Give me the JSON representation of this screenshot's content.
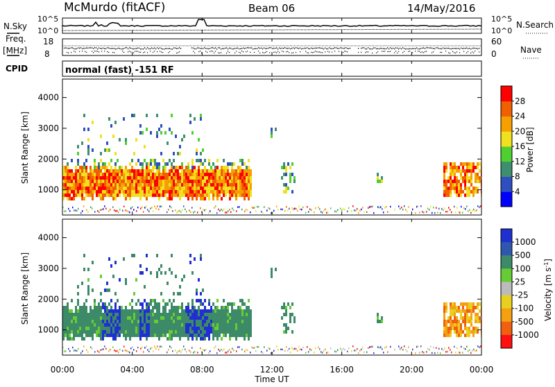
{
  "header": {
    "station": "McMurdo (fitACF)",
    "beam": "Beam 06",
    "date": "14/May/2016"
  },
  "summary": {
    "nsky_label": "N.Sky",
    "nsky_ticks": [
      "10^5",
      "10^0"
    ],
    "nsearch_label": "N.Search",
    "nsearch_ticks": [
      "10^5",
      "10^0"
    ],
    "freq_label_1": "Freq.",
    "freq_label_2": "[MHz]",
    "freq_ticks": [
      "18",
      "8"
    ],
    "nave_label": "Nave",
    "nave_ticks": [
      "60",
      "0"
    ],
    "cpid_label": "CPID",
    "cpid_text": "normal (fast) -151 RF"
  },
  "colors": {
    "power_scale": [
      "#0000ff",
      "#2e4fbf",
      "#3d8f6f",
      "#4fcf30",
      "#f0e020",
      "#f5a000",
      "#f06000",
      "#ff0000"
    ],
    "velocity_scale": [
      "#2030d0",
      "#2f57b0",
      "#3d8a68",
      "#66cc33",
      "#bbbbbb",
      "#e8d020",
      "#f5a010",
      "#f06010",
      "#ff1010"
    ]
  },
  "chart_data": [
    {
      "type": "heatmap",
      "quantity": "power",
      "ylabel": "Slant Range [km]",
      "yticks": [
        1000,
        2000,
        3000,
        4000
      ],
      "ylim": [
        180,
        4600
      ],
      "xlim_hours": [
        0,
        24
      ],
      "colorbar_label": "Power [dB]",
      "colorbar_ticks": [
        4,
        8,
        12,
        16,
        20,
        24,
        28
      ],
      "colorbar_range": [
        0,
        32
      ]
    },
    {
      "type": "heatmap",
      "quantity": "velocity",
      "ylabel": "Slant Range [km]",
      "yticks": [
        1000,
        2000,
        3000,
        4000
      ],
      "ylim": [
        180,
        4600
      ],
      "xlim_hours": [
        0,
        24
      ],
      "xticks": [
        "00:00",
        "04:00",
        "08:00",
        "12:00",
        "16:00",
        "20:00",
        "00:00"
      ],
      "xlabel": "Time UT",
      "colorbar_label": "Velocity [m s^-1]",
      "colorbar_ticks": [
        "1000",
        "500",
        "100",
        "25",
        "-25",
        "-100",
        "-500",
        "-1000"
      ]
    }
  ]
}
